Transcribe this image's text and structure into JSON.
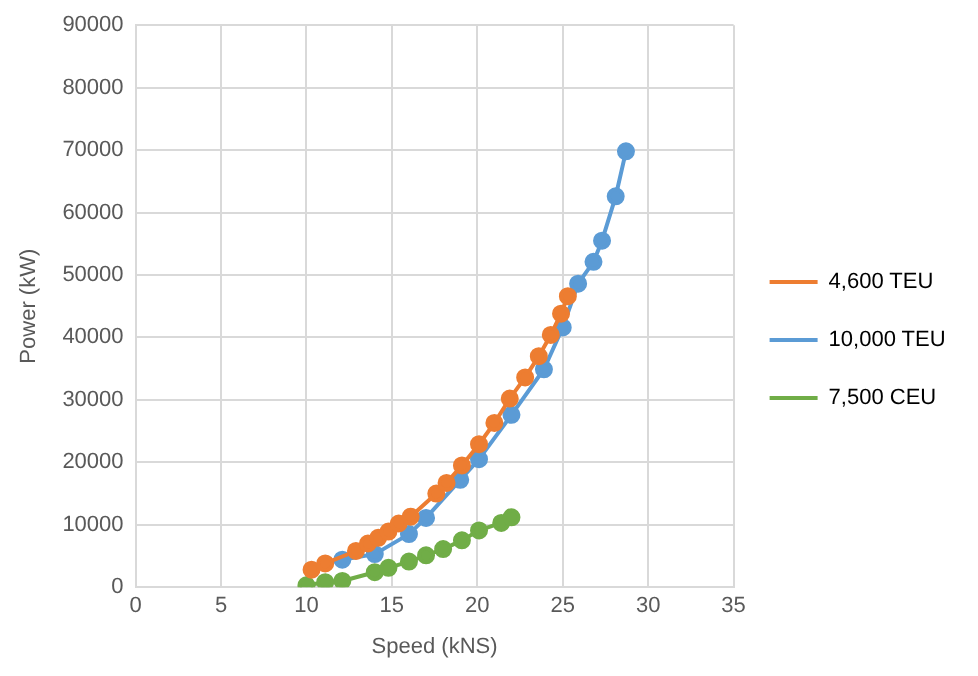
{
  "chart_data": {
    "type": "line",
    "xlabel": "Speed (kNS)",
    "ylabel": "Power (kW)",
    "xlim": [
      0,
      35
    ],
    "xticks": [
      0,
      5,
      10,
      15,
      20,
      25,
      30,
      35
    ],
    "ylim": [
      0,
      90000
    ],
    "yticks": [
      0,
      10000,
      20000,
      30000,
      40000,
      50000,
      60000,
      70000,
      80000,
      90000
    ],
    "grid": true,
    "legend": "right",
    "marker": "circle",
    "line_style": "solid",
    "series": [
      {
        "name": "4,600 TEU",
        "color": "#ed7d31",
        "x": [
          10.3,
          11.1,
          12.9,
          13.6,
          14.2,
          14.8,
          15.4,
          16.1,
          17.6,
          18.2,
          19.1,
          20.1,
          21,
          21.9,
          22.8,
          23.6,
          24.3,
          24.9,
          25.3
        ],
        "values": [
          2800,
          3800,
          5800,
          7000,
          7900,
          8900,
          10200,
          11300,
          15000,
          16700,
          19500,
          22900,
          26300,
          30200,
          33600,
          37000,
          40400,
          43800,
          46600
        ]
      },
      {
        "name": "10,000 TEU",
        "color": "#5b9bd5",
        "x": [
          12.1,
          14,
          16,
          17,
          19,
          20.1,
          22,
          23.9,
          25,
          25.9,
          26.8,
          27.3,
          28.1,
          28.7
        ],
        "values": [
          4400,
          5300,
          8500,
          11100,
          17200,
          20500,
          27600,
          34900,
          41600,
          48600,
          52100,
          55500,
          62600,
          69800
        ]
      },
      {
        "name": "7,500 CEU",
        "color": "#70ad47",
        "x": [
          10,
          11.1,
          12.1,
          14,
          14.8,
          16,
          17,
          18,
          19.1,
          20.1,
          21.4,
          22
        ],
        "values": [
          300,
          800,
          1000,
          2400,
          3100,
          4100,
          5100,
          6100,
          7500,
          9100,
          10300,
          11200
        ]
      }
    ]
  }
}
